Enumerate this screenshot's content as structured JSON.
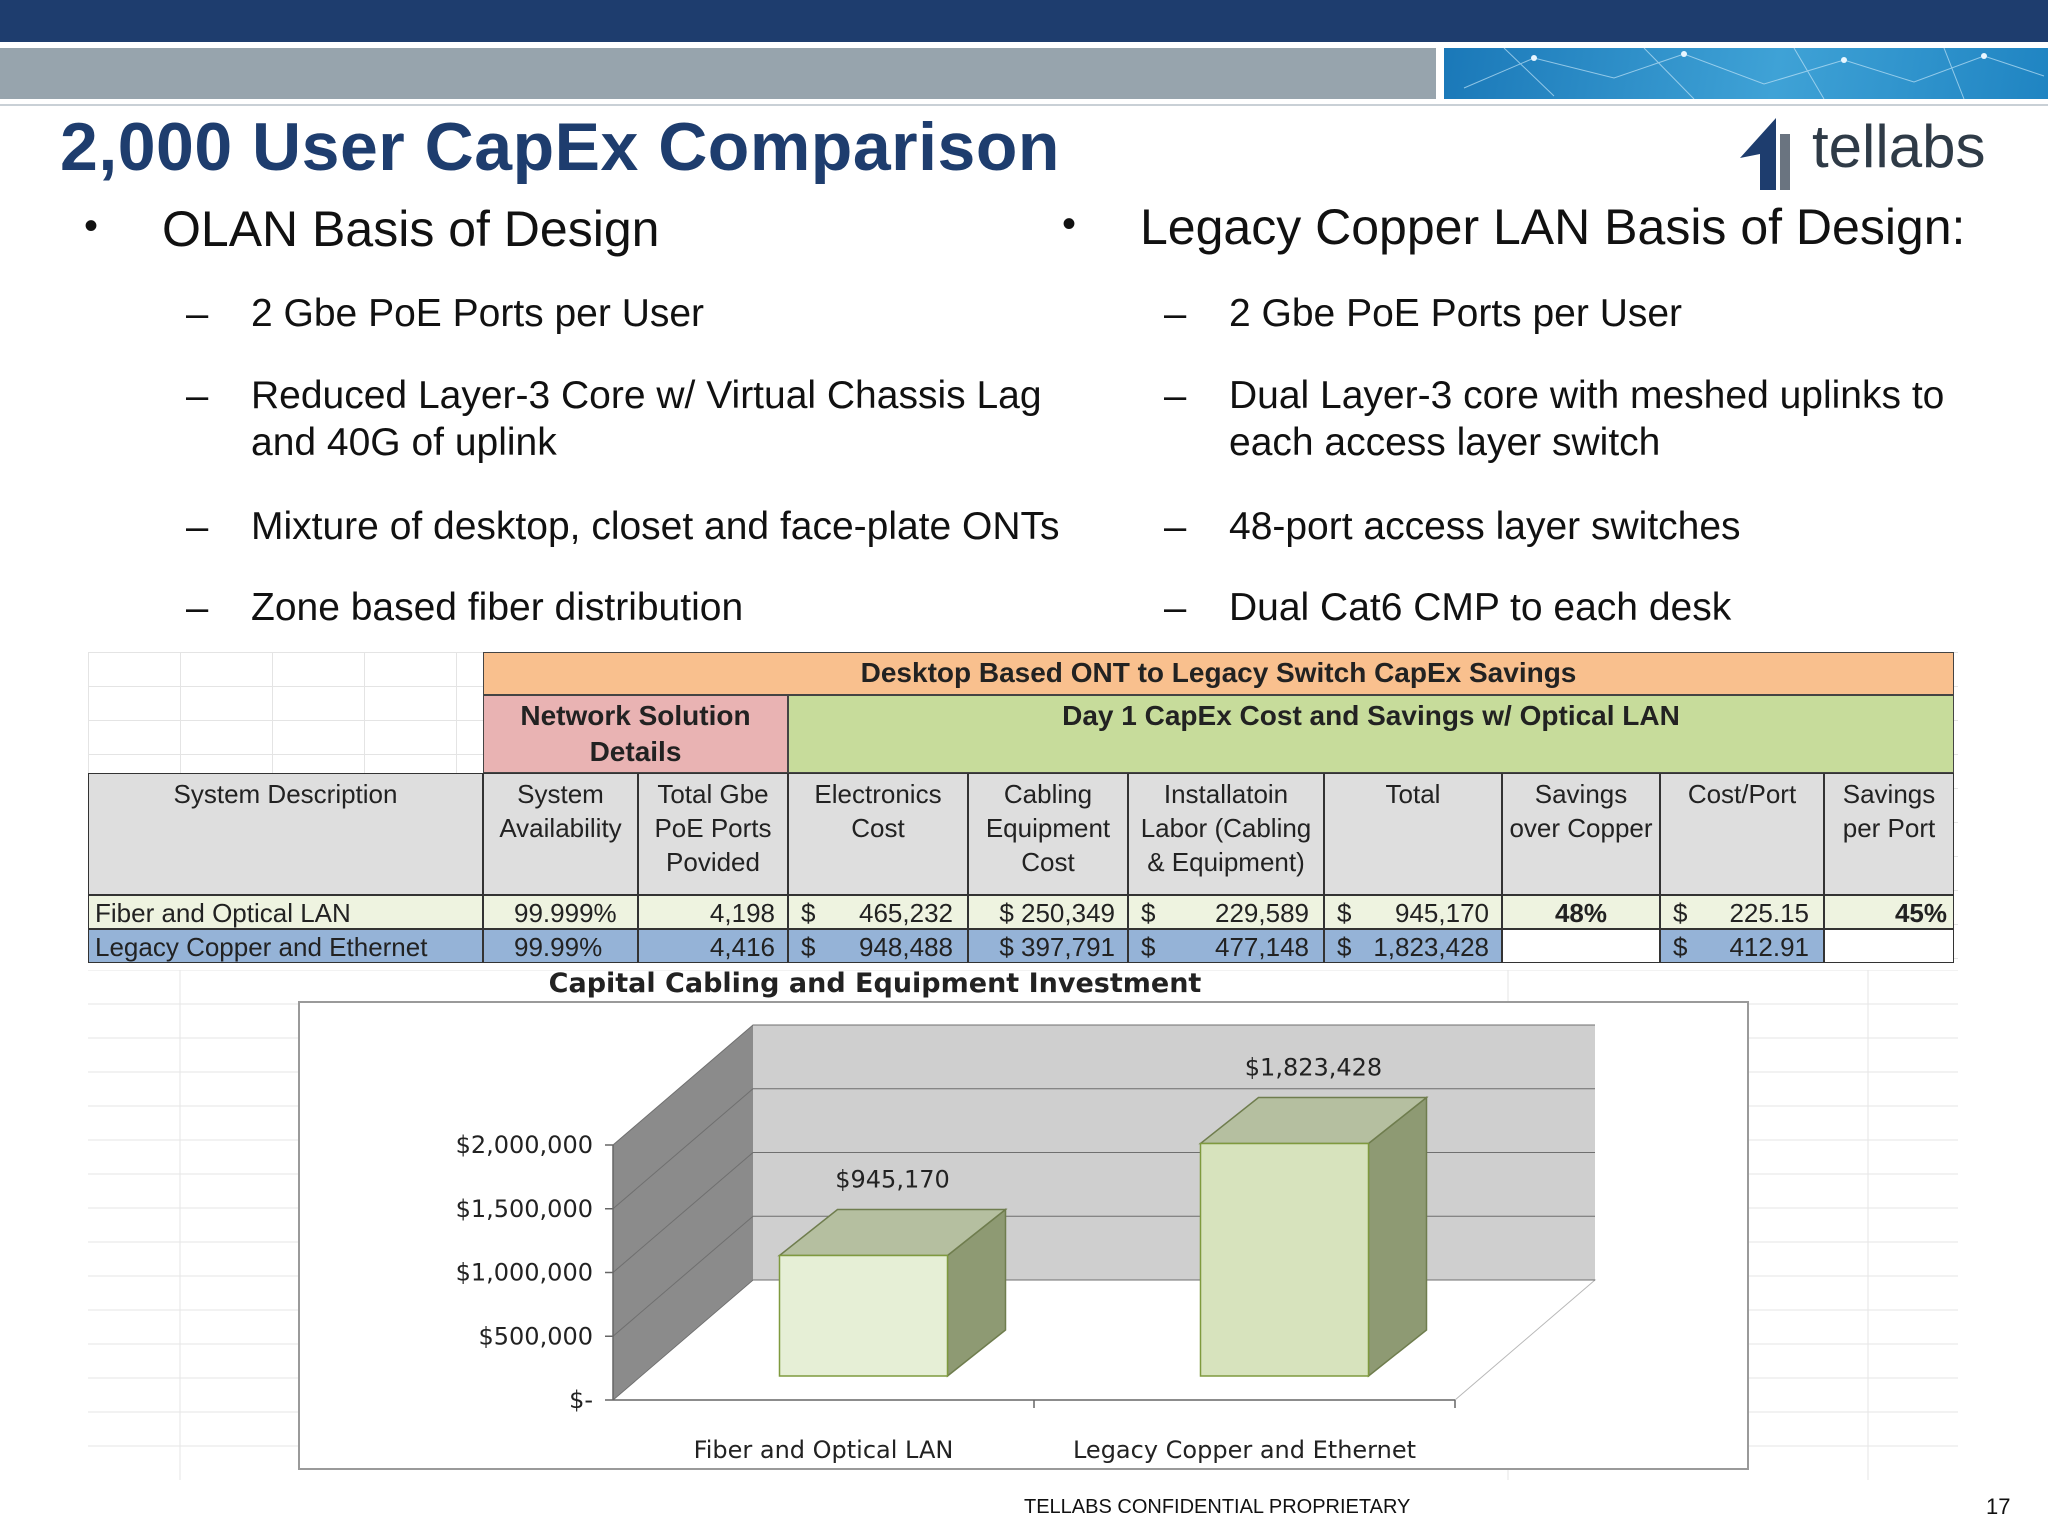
{
  "slide": {
    "title": "2,000 User CapEx Comparison",
    "logo_text": "tellabs",
    "footer": "TELLABS CONFIDENTIAL PROPRIETARY",
    "page_number": "17"
  },
  "left_column": {
    "heading": "OLAN Basis of Design",
    "items": [
      [
        "2 Gbe PoE Ports per User"
      ],
      [
        "Reduced Layer-3 Core w/ Virtual Chassis Lag",
        "and 40G of uplink"
      ],
      [
        "Mixture of desktop, closet and face-plate ONTs"
      ],
      [
        "Zone based fiber distribution"
      ]
    ]
  },
  "right_column": {
    "heading": "Legacy Copper LAN Basis of Design:",
    "items": [
      [
        "2 Gbe PoE Ports per User"
      ],
      [
        "Dual Layer-3 core with meshed uplinks to",
        "each access layer switch"
      ],
      [
        "48-port access layer switches"
      ],
      [
        "Dual Cat6 CMP to each desk"
      ]
    ]
  },
  "table": {
    "banner": "Desktop Based ONT to Legacy Switch CapEx Savings",
    "group_network": [
      "Network Solution",
      "Details"
    ],
    "group_day1": "Day 1 CapEx Cost and Savings w/ Optical LAN",
    "headers": {
      "desc": [
        "System Description"
      ],
      "avail": [
        "System",
        "Availability"
      ],
      "ports": [
        "Total Gbe",
        "PoE Ports",
        "Povided"
      ],
      "elec": [
        "Electronics",
        "Cost"
      ],
      "cabling": [
        "Cabling",
        "Equipment",
        "Cost"
      ],
      "install": [
        "Installatoin",
        "Labor (Cabling",
        "& Equipment)"
      ],
      "total": [
        "Total"
      ],
      "savings": [
        "Savings",
        "over Copper"
      ],
      "costport": [
        "Cost/Port"
      ],
      "savport": [
        "Savings",
        "per Port"
      ]
    },
    "rows": [
      {
        "desc": "Fiber and Optical LAN",
        "avail": "99.999%",
        "ports": "4,198",
        "elec_sym": "$",
        "elec": "465,232",
        "cabling": "$  250,349",
        "install_sym": "$",
        "install": "229,589",
        "total_sym": "$",
        "total": "945,170",
        "savings": "48%",
        "costport_sym": "$",
        "costport": "225.15",
        "savport": "45%"
      },
      {
        "desc": "Legacy Copper and Ethernet",
        "avail": "99.99%",
        "ports": "4,416",
        "elec_sym": "$",
        "elec": "948,488",
        "cabling": "$  397,791",
        "install_sym": "$",
        "install": "477,148",
        "total_sym": "$",
        "total": "1,823,428",
        "savings": "",
        "costport_sym": "$",
        "costport": "412.91",
        "savport": ""
      }
    ]
  },
  "chart_data": {
    "type": "bar",
    "title": "Capital Cabling and Equipment Investment",
    "categories": [
      "Fiber and Optical LAN",
      "Legacy Copper and Ethernet"
    ],
    "values": [
      945170,
      1823428
    ],
    "data_labels": [
      "$945,170",
      "$1,823,428"
    ],
    "ylim": [
      0,
      2000000
    ],
    "yticks": [
      0,
      500000,
      1000000,
      1500000,
      2000000
    ],
    "ytick_labels": [
      "$-",
      "$500,000",
      "$1,000,000",
      "$1,500,000",
      "$2,000,000"
    ],
    "grid": true,
    "style": "3d",
    "colors": {
      "fiber_front": "#e6efd6",
      "legacy_front": "#d7e3bd",
      "bar_side": "#8e9a73",
      "bar_top": "#b5bfa0",
      "back_wall": "#cfcfcf",
      "left_wall": "#8b8b8b"
    }
  },
  "colors": {
    "title": "#1e3d6e",
    "banner": "#f9c08e",
    "network_group": "#e9b3b3",
    "day1_group": "#c7dc9b",
    "fiber_row": "#eef3e0",
    "legacy_row": "#95b3d7",
    "header_gray": "#dedede"
  }
}
